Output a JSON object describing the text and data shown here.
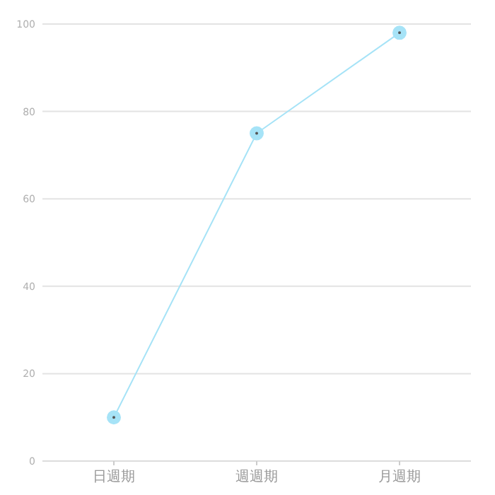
{
  "chart_data": {
    "type": "line",
    "categories": [
      "日週期",
      "週週期",
      "月週期"
    ],
    "series": [
      {
        "color": "#a6e3f7",
        "values": [
          10,
          75,
          98
        ]
      }
    ],
    "ylim": [
      0,
      100
    ],
    "yticks": [
      0,
      20,
      40,
      60,
      80,
      100
    ],
    "grid": "y",
    "marker": "circle",
    "line_style": "solid"
  }
}
